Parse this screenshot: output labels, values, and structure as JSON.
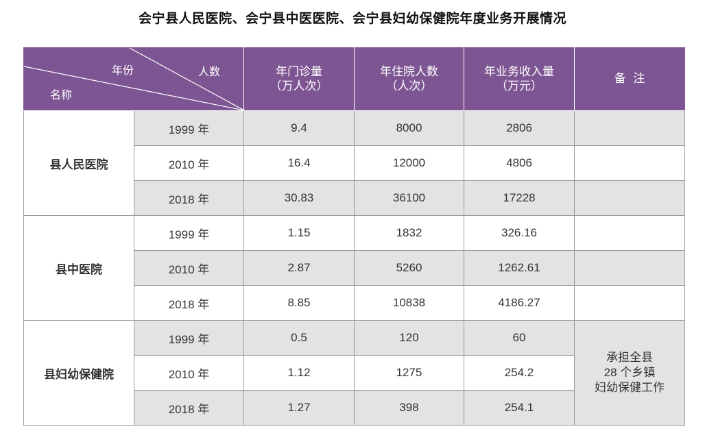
{
  "title": "会宁县人民医院、会宁县中医医院、会宁县妇幼保健院年度业务开展情况",
  "header": {
    "year_label": "年份",
    "count_label": "人数",
    "name_label": "名称",
    "col_outpatient": "年门诊量\n（万人次）",
    "col_inpatient": "年住院人数\n（人次）",
    "col_revenue": "年业务收入量\n（万元）",
    "col_remark": "备  注"
  },
  "institutions": [
    {
      "name": "县人民医院",
      "rows": [
        {
          "year": "1999 年",
          "outpatient": "9.4",
          "inpatient": "8000",
          "revenue": "2806"
        },
        {
          "year": "2010 年",
          "outpatient": "16.4",
          "inpatient": "12000",
          "revenue": "4806"
        },
        {
          "year": "2018 年",
          "outpatient": "30.83",
          "inpatient": "36100",
          "revenue": "17228"
        }
      ]
    },
    {
      "name": "县中医院",
      "rows": [
        {
          "year": "1999 年",
          "outpatient": "1.15",
          "inpatient": "1832",
          "revenue": "326.16"
        },
        {
          "year": "2010 年",
          "outpatient": "2.87",
          "inpatient": "5260",
          "revenue": "1262.61"
        },
        {
          "year": "2018 年",
          "outpatient": "8.85",
          "inpatient": "10838",
          "revenue": "4186.27"
        }
      ]
    },
    {
      "name": "县妇幼保健院",
      "remark": "承担全县\n28 个乡镇\n妇幼保健工作",
      "rows": [
        {
          "year": "1999 年",
          "outpatient": "0.5",
          "inpatient": "120",
          "revenue": "60"
        },
        {
          "year": "2010 年",
          "outpatient": "1.12",
          "inpatient": "1275",
          "revenue": "254.2"
        },
        {
          "year": "2018 年",
          "outpatient": "1.27",
          "inpatient": "398",
          "revenue": "254.1"
        }
      ]
    }
  ],
  "colors": {
    "header_bg": "#7e5593",
    "row_gray": "#e3e3e3"
  }
}
